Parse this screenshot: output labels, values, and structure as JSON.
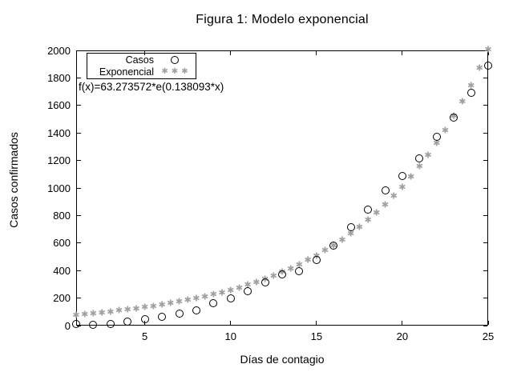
{
  "window": {
    "background": "#ffffff"
  },
  "colors": {
    "foreground": "#000000",
    "background": "#ffffff",
    "casos_marker": "#000000",
    "exponencial_marker": "#a0a0a0"
  },
  "chart_data": {
    "type": "scatter",
    "title": "Figura 1: Modelo exponencial",
    "xlabel": "Días de contagio",
    "ylabel": "Casos confirmados",
    "xlim": [
      1,
      25
    ],
    "ylim": [
      0,
      2000
    ],
    "x_ticks": [
      5,
      10,
      15,
      20,
      25
    ],
    "y_ticks": [
      0,
      200,
      400,
      600,
      800,
      1000,
      1200,
      1400,
      1600,
      1800,
      2000
    ],
    "grid": false,
    "legend_position": "top-left-inside",
    "annotation": "f(x)=63.273572*e(0.138093*x)",
    "legend": [
      {
        "label": "Casos",
        "marker": "open-circle"
      },
      {
        "label": "Exponencial",
        "marker": "star"
      }
    ],
    "marker_glyphs": {
      "star": "✱"
    },
    "series": [
      {
        "name": "Casos",
        "marker": "open-circle",
        "color": "#000000",
        "x": [
          1,
          2,
          3,
          4,
          5,
          6,
          7,
          8,
          9,
          10,
          11,
          12,
          13,
          14,
          15,
          16,
          17,
          18,
          19,
          20,
          21,
          22,
          23,
          24,
          25
        ],
        "y": [
          12,
          4,
          13,
          30,
          46,
          65,
          85,
          112,
          162,
          200,
          250,
          315,
          370,
          397,
          475,
          580,
          718,
          845,
          985,
          1090,
          1215,
          1375,
          1510,
          1690,
          1890
        ]
      },
      {
        "name": "Exponencial",
        "marker": "star",
        "color": "#a0a0a0",
        "formula": "f(x)=63.273572*e(0.138093*x)",
        "coef_a": 63.273572,
        "coef_b": 0.138093,
        "x_start": 1,
        "x_end": 25,
        "x_step": 0.5
      }
    ]
  }
}
